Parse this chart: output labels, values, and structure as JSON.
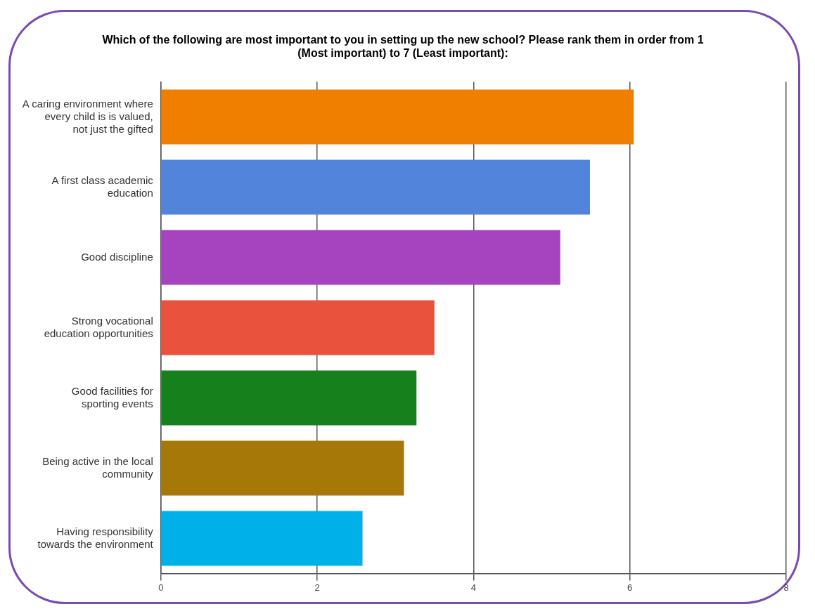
{
  "chart_data": {
    "type": "bar",
    "orientation": "horizontal",
    "title": "Which of the following are most important to you in setting up the new school? Please rank them in order from 1 (Most important) to 7 (Least important):",
    "categories": [
      "A caring environment where every child is is valued, not just the gifted",
      "A first class academic education",
      "Good discipline",
      "Strong vocational education opportunities",
      "Good facilities for sporting events",
      "Being active in the local community",
      "Having responsibility towards the environment"
    ],
    "values": [
      6.05,
      5.49,
      5.11,
      3.5,
      3.27,
      3.11,
      2.58
    ],
    "colors": [
      "#f07f00",
      "#5284dc",
      "#a644c0",
      "#e9523c",
      "#16801c",
      "#a57808",
      "#00b0e8"
    ],
    "xlim": [
      0,
      8
    ],
    "xticks": [
      0,
      2,
      4,
      6,
      8
    ],
    "grid": "x",
    "legend": false
  }
}
